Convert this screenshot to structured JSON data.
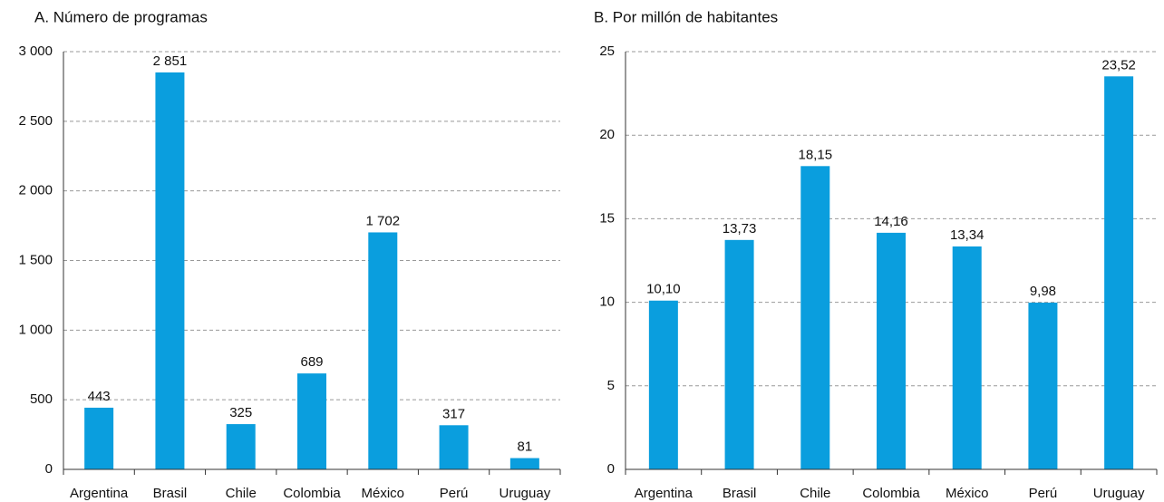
{
  "chart_data": [
    {
      "type": "bar",
      "title": "A. Número de programas",
      "categories": [
        "Argentina",
        "Brasil",
        "Chile",
        "Colombia",
        "México",
        "Perú",
        "Uruguay"
      ],
      "values": [
        443,
        2851,
        325,
        689,
        1702,
        317,
        81
      ],
      "value_labels": [
        "443",
        "2 851",
        "325",
        "689",
        "1 702",
        "317",
        "81"
      ],
      "color": "#0a9ede",
      "ylim": [
        0,
        3000
      ],
      "yticks": [
        0,
        500,
        {
          "value": 1000,
          "label": "1 000"
        },
        {
          "value": 1500,
          "label": "1 500"
        },
        {
          "value": 2000,
          "label": "2 000"
        },
        {
          "value": 2500,
          "label": "2 500"
        },
        {
          "value": 3000,
          "label": "3 000"
        }
      ],
      "grid": true
    },
    {
      "type": "bar",
      "title": "B. Por millón de habitantes",
      "categories": [
        "Argentina",
        "Brasil",
        "Chile",
        "Colombia",
        "México",
        "Perú",
        "Uruguay"
      ],
      "values": [
        10.1,
        13.73,
        18.15,
        14.16,
        13.34,
        9.98,
        23.52
      ],
      "value_labels": [
        "10,10",
        "13,73",
        "18,15",
        "14,16",
        "13,34",
        "9,98",
        "23,52"
      ],
      "color": "#0a9ede",
      "ylim": [
        0,
        25
      ],
      "yticks": [
        0,
        5,
        10,
        15,
        20,
        25
      ],
      "grid": true
    }
  ]
}
